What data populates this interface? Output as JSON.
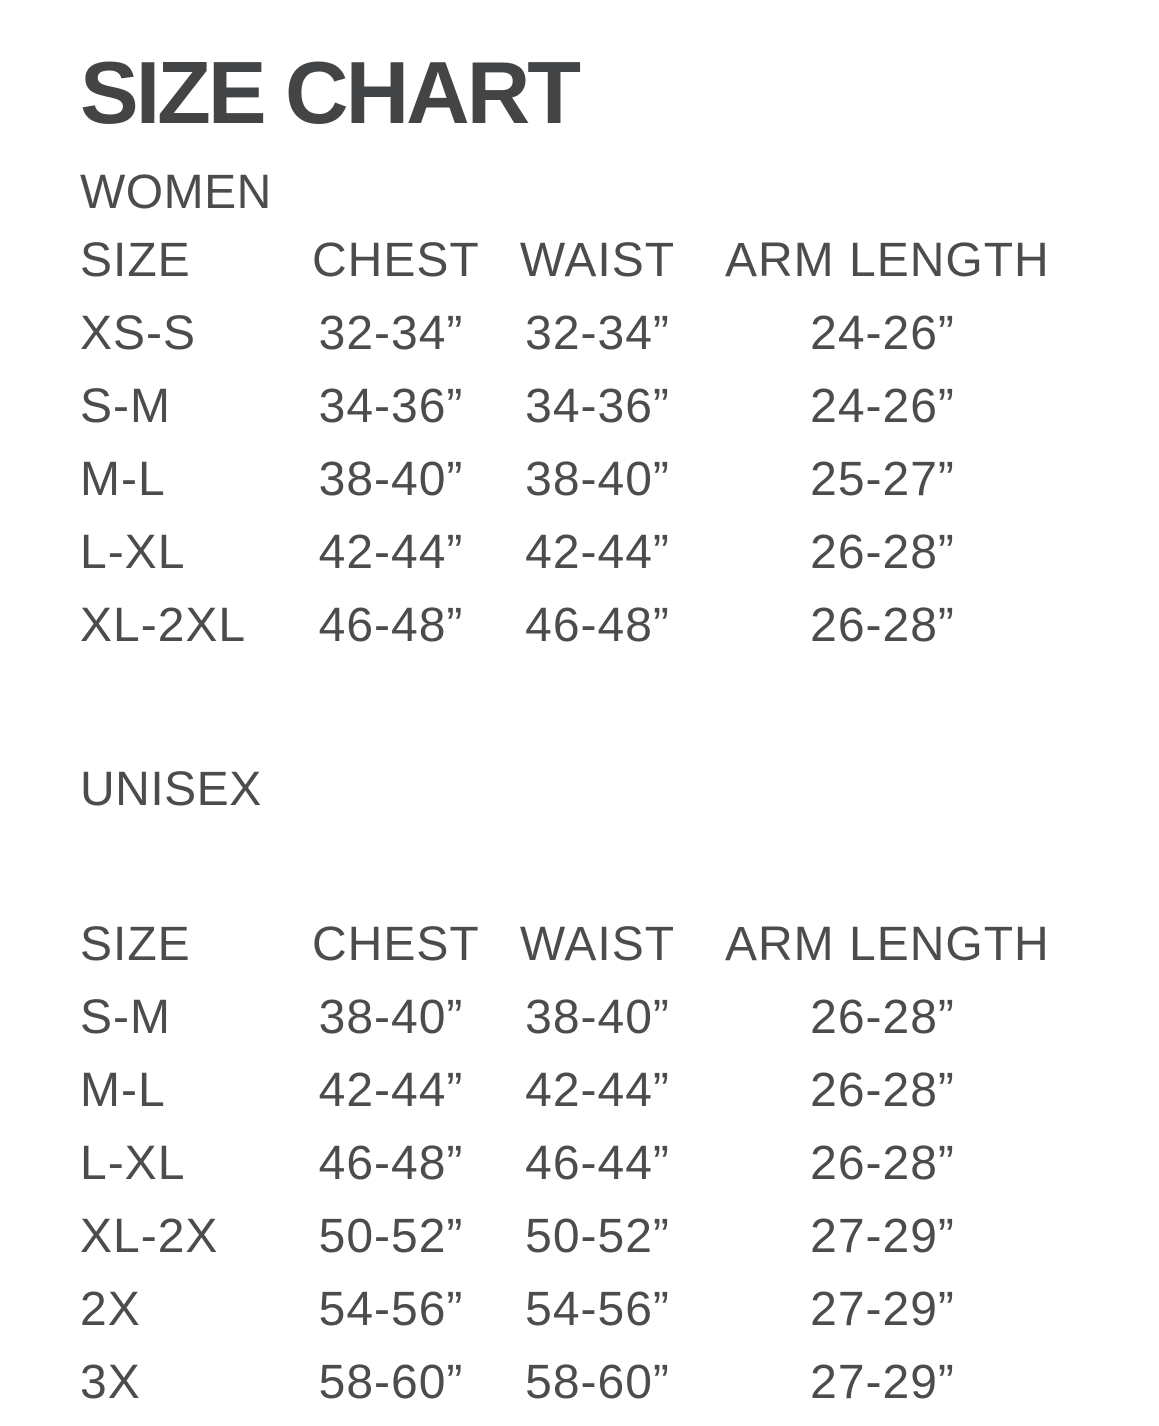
{
  "title": "SIZE CHART",
  "colors": {
    "background": "#ffffff",
    "title_text": "#434446",
    "body_text": "#4b4c4e"
  },
  "columns": [
    "SIZE",
    "CHEST",
    "WAIST",
    "ARM LENGTH"
  ],
  "women": {
    "label": "WOMEN",
    "rows": [
      {
        "size": "XS-S",
        "chest": "32-34”",
        "waist": "32-34”",
        "arm_length": "24-26”"
      },
      {
        "size": "S-M",
        "chest": "34-36”",
        "waist": "34-36”",
        "arm_length": "24-26”"
      },
      {
        "size": "M-L",
        "chest": "38-40”",
        "waist": "38-40”",
        "arm_length": "25-27”"
      },
      {
        "size": "L-XL",
        "chest": "42-44”",
        "waist": "42-44”",
        "arm_length": "26-28”"
      },
      {
        "size": "XL-2XL",
        "chest": "46-48”",
        "waist": "46-48”",
        "arm_length": "26-28”"
      }
    ]
  },
  "unisex": {
    "label": "UNISEX",
    "rows": [
      {
        "size": "S-M",
        "chest": "38-40”",
        "waist": "38-40”",
        "arm_length": "26-28”"
      },
      {
        "size": "M-L",
        "chest": "42-44”",
        "waist": "42-44”",
        "arm_length": "26-28”"
      },
      {
        "size": "L-XL",
        "chest": "46-48”",
        "waist": "46-44”",
        "arm_length": "26-28”"
      },
      {
        "size": "XL-2X",
        "chest": "50-52”",
        "waist": "50-52”",
        "arm_length": "27-29”"
      },
      {
        "size": "2X",
        "chest": "54-56”",
        "waist": "54-56”",
        "arm_length": "27-29”"
      },
      {
        "size": "3X",
        "chest": "58-60”",
        "waist": "58-60”",
        "arm_length": "27-29”"
      }
    ]
  }
}
